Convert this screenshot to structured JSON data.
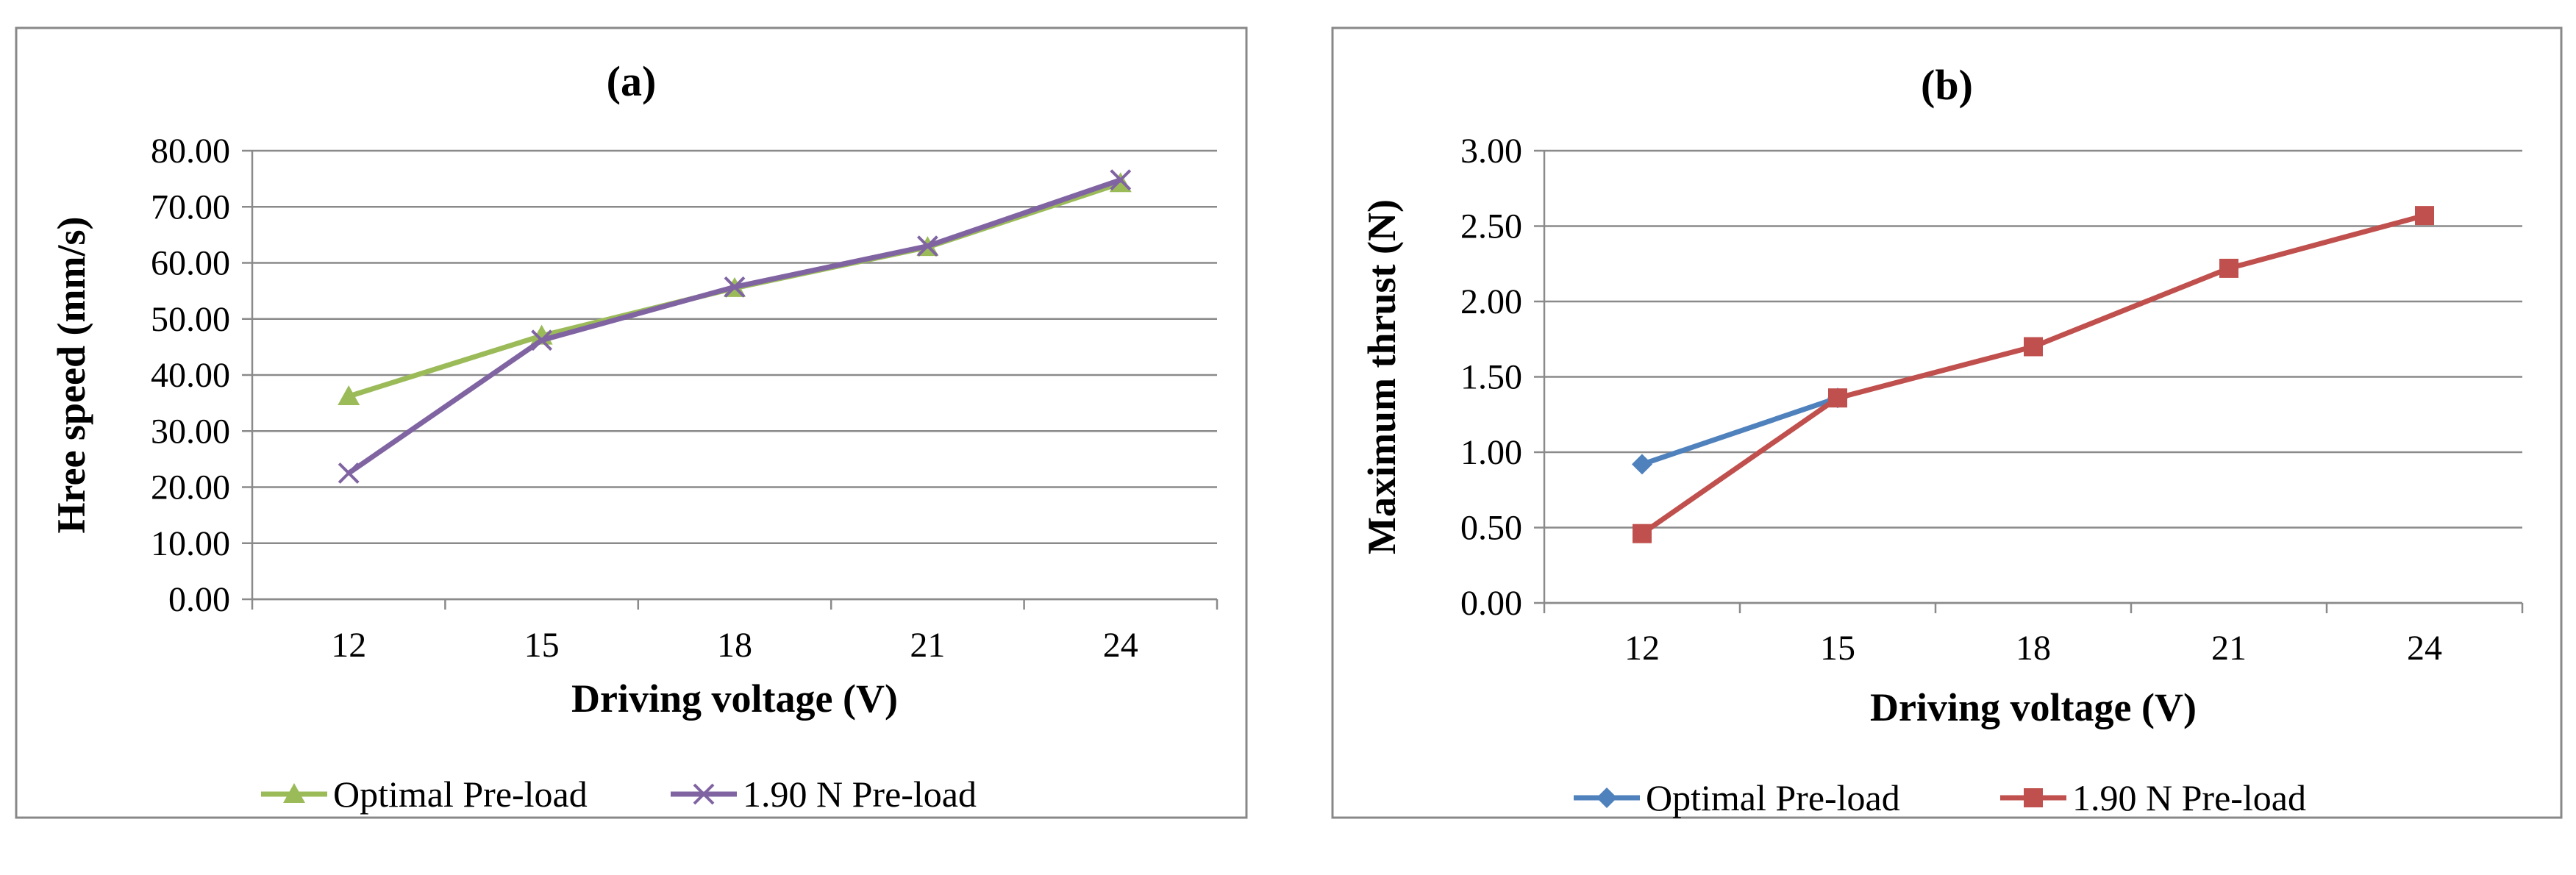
{
  "chart_data": [
    {
      "type": "line",
      "title": "(a)",
      "xlabel": "Driving voltage (V)",
      "ylabel": "Hree speed (mm/s)",
      "categories": [
        "12",
        "15",
        "18",
        "21",
        "24"
      ],
      "ylim": [
        0,
        80
      ],
      "ytick_step": 10,
      "ytick_labels": [
        "0.00",
        "10.00",
        "20.00",
        "30.00",
        "40.00",
        "50.00",
        "60.00",
        "70.00",
        "80.00"
      ],
      "grid": true,
      "legend": "bottom",
      "series": [
        {
          "name": "Optimal Pre-load",
          "values": [
            36.2,
            47.0,
            55.5,
            62.8,
            74.2
          ],
          "color": "#9bbb59",
          "marker": "triangle"
        },
        {
          "name": "1.90 N Pre-load",
          "values": [
            22.5,
            46.2,
            55.7,
            63.0,
            74.8
          ],
          "color": "#8064a2",
          "marker": "x"
        }
      ]
    },
    {
      "type": "line",
      "title": "(b)",
      "xlabel": "Driving voltage (V)",
      "ylabel": "Maximum thrust (N)",
      "categories": [
        "12",
        "15",
        "18",
        "21",
        "24"
      ],
      "ylim": [
        0,
        3
      ],
      "ytick_step": 0.5,
      "ytick_labels": [
        "0.00",
        "0.50",
        "1.00",
        "1.50",
        "2.00",
        "2.50",
        "3.00"
      ],
      "grid": true,
      "legend": "bottom",
      "series": [
        {
          "name": "Optimal Pre-load",
          "values": [
            0.92,
            1.36,
            null,
            null,
            null
          ],
          "color": "#4f81bd",
          "marker": "diamond"
        },
        {
          "name": "1.90 N Pre-load",
          "values": [
            0.46,
            1.36,
            1.7,
            2.22,
            2.57
          ],
          "color": "#c0504d",
          "marker": "square"
        }
      ]
    }
  ]
}
